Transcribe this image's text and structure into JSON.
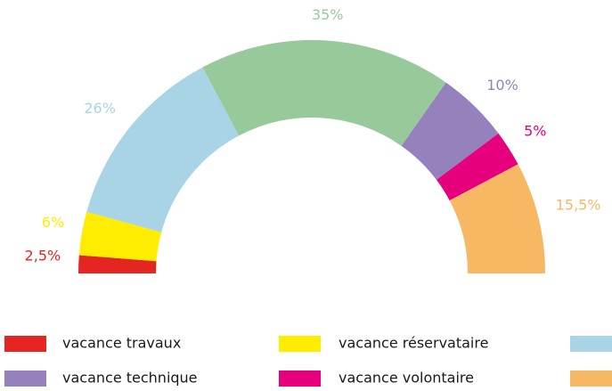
{
  "chart_data": {
    "type": "half-donut",
    "categories": [
      "vacance travaux",
      "vacance réservataire",
      null,
      null,
      "vacance technique",
      "vacance volontaire",
      null
    ],
    "values": [
      2.5,
      6,
      26,
      35,
      10,
      5,
      15.5
    ],
    "value_labels": [
      "2,5%",
      "6%",
      "26%",
      "35%",
      "10%",
      "5%",
      "15,5%"
    ],
    "colors": [
      "#e52521",
      "#ffed00",
      "#a9d4e6",
      "#98c99b",
      "#9581bb",
      "#e6007e",
      "#f6b862"
    ],
    "legend": "bottom"
  }
}
